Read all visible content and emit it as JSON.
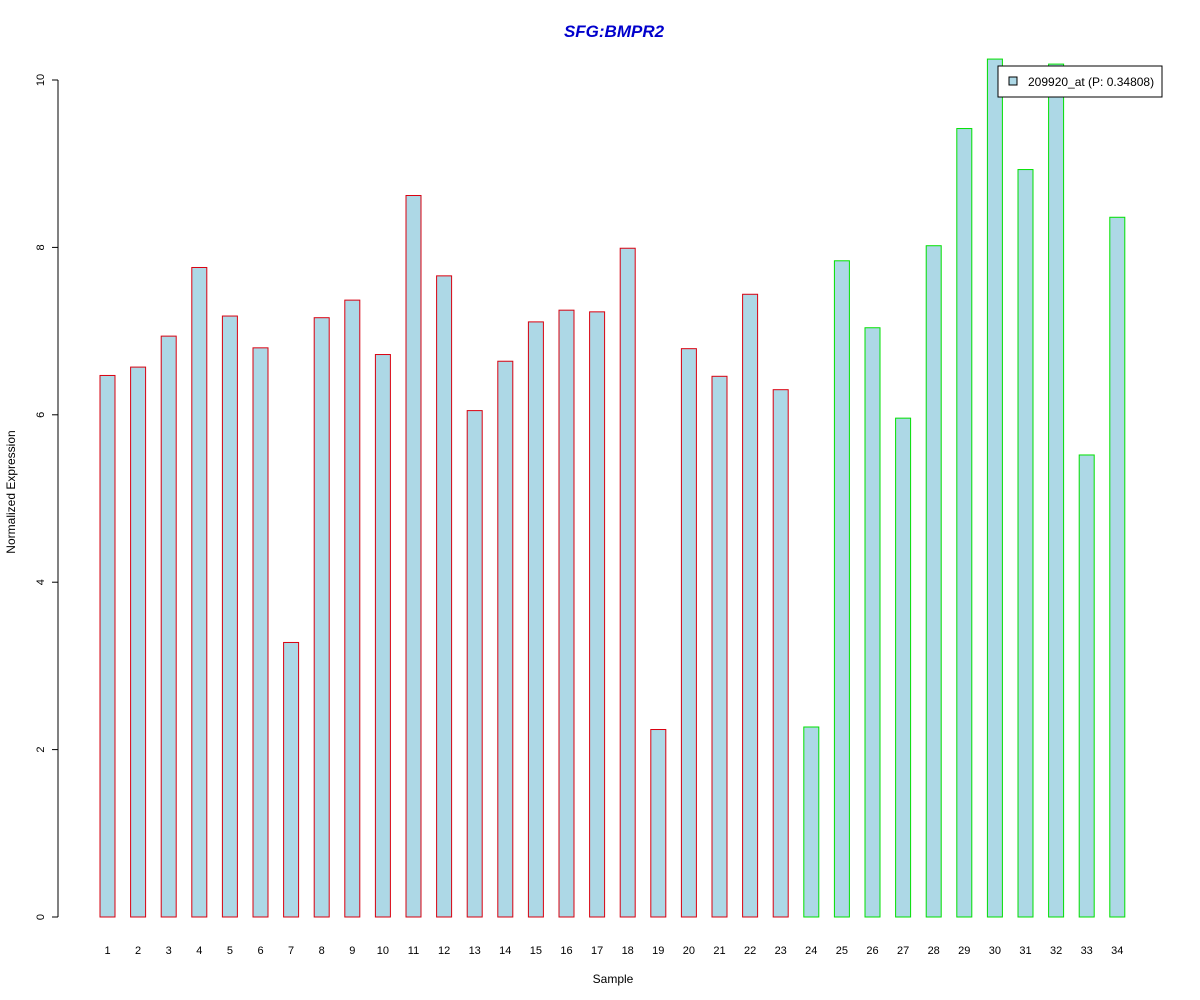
{
  "chart_data": {
    "type": "bar",
    "title": "SFG:BMPR2",
    "xlabel": "Sample",
    "ylabel": "Normalized Expression",
    "ylim": [
      0,
      10
    ],
    "yticks": [
      0,
      2,
      4,
      6,
      8,
      10
    ],
    "categories": [
      "1",
      "2",
      "3",
      "4",
      "5",
      "6",
      "7",
      "8",
      "9",
      "10",
      "11",
      "12",
      "13",
      "14",
      "15",
      "16",
      "17",
      "18",
      "19",
      "20",
      "21",
      "22",
      "23",
      "24",
      "25",
      "26",
      "27",
      "28",
      "29",
      "30",
      "31",
      "32",
      "33",
      "34"
    ],
    "series": [
      {
        "name": "209920_at (P: 0.34808)",
        "values": [
          6.47,
          6.57,
          6.94,
          7.76,
          7.18,
          6.8,
          3.28,
          7.16,
          7.37,
          6.72,
          8.62,
          7.66,
          6.05,
          6.64,
          7.11,
          7.25,
          7.23,
          7.99,
          2.24,
          6.79,
          6.46,
          7.44,
          6.3,
          2.27,
          7.84,
          7.04,
          5.96,
          8.02,
          9.42,
          10.25,
          8.93,
          10.19,
          5.52,
          8.36
        ]
      }
    ],
    "groups": [
      {
        "from": 1,
        "to": 23,
        "border_color": "#d9000f"
      },
      {
        "from": 24,
        "to": 34,
        "border_color": "#00e000"
      }
    ],
    "bar_fill": "#add8e6",
    "title_color": "#0000cc",
    "grid": false,
    "legend_position": "top-right"
  }
}
